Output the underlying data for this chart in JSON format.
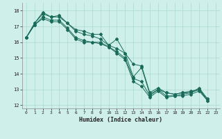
{
  "xlabel": "Humidex (Indice chaleur)",
  "bg_color": "#cff0ea",
  "grid_color": "#aad8d0",
  "line_color": "#1a6b5a",
  "xlim": [
    -0.5,
    23.5
  ],
  "ylim": [
    11.8,
    18.5
  ],
  "yticks": [
    12,
    13,
    14,
    15,
    16,
    17,
    18
  ],
  "xticks": [
    0,
    1,
    2,
    3,
    4,
    5,
    6,
    7,
    8,
    9,
    10,
    11,
    12,
    13,
    14,
    15,
    16,
    17,
    18,
    19,
    20,
    21,
    22,
    23
  ],
  "series": [
    [
      16.3,
      17.2,
      17.9,
      17.6,
      17.7,
      17.2,
      16.8,
      16.7,
      16.5,
      16.5,
      15.8,
      16.2,
      15.3,
      13.8,
      14.4,
      12.7,
      13.0,
      12.8,
      12.7,
      12.8,
      12.8,
      13.1,
      12.4
    ],
    [
      16.3,
      17.2,
      17.8,
      17.6,
      17.6,
      17.2,
      16.7,
      16.5,
      16.4,
      16.2,
      15.8,
      15.6,
      15.3,
      14.6,
      14.5,
      12.8,
      13.1,
      12.8,
      12.7,
      12.8,
      12.9,
      13.0,
      12.4
    ],
    [
      16.3,
      17.1,
      17.6,
      17.4,
      17.4,
      16.9,
      16.3,
      16.1,
      16.0,
      16.0,
      15.7,
      15.4,
      15.0,
      13.7,
      13.5,
      12.6,
      13.0,
      12.6,
      12.6,
      12.7,
      12.8,
      13.0,
      12.3
    ],
    [
      16.3,
      17.1,
      17.5,
      17.3,
      17.3,
      16.8,
      16.2,
      16.0,
      16.0,
      15.9,
      15.7,
      15.3,
      14.9,
      13.5,
      13.2,
      12.5,
      12.9,
      12.5,
      12.6,
      12.6,
      12.7,
      12.9,
      12.3
    ]
  ]
}
